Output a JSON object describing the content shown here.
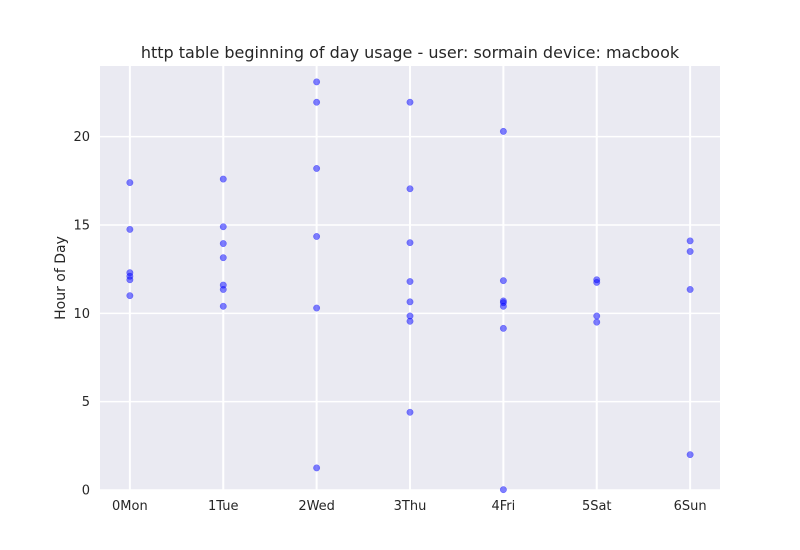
{
  "chart_data": {
    "type": "scatter",
    "title": "http table beginning of day usage -  user: sormain device: macbook",
    "xlabel": "",
    "ylabel": "Hour of Day",
    "categories": [
      "0Mon",
      "1Tue",
      "2Wed",
      "3Thu",
      "4Fri",
      "5Sat",
      "6Sun"
    ],
    "yticks": [
      0,
      5,
      10,
      15,
      20
    ],
    "ytick_labels": [
      "0",
      "5",
      "10",
      "15",
      "20"
    ],
    "xlim": [
      -0.32,
      6.32
    ],
    "ylim": [
      0,
      24
    ],
    "grid": true,
    "points": [
      {
        "x": 0,
        "y": 17.4
      },
      {
        "x": 0,
        "y": 14.75
      },
      {
        "x": 0,
        "y": 12.3
      },
      {
        "x": 0,
        "y": 12.1
      },
      {
        "x": 0,
        "y": 11.9
      },
      {
        "x": 0,
        "y": 11.0
      },
      {
        "x": 1,
        "y": 17.6
      },
      {
        "x": 1,
        "y": 14.9
      },
      {
        "x": 1,
        "y": 13.95
      },
      {
        "x": 1,
        "y": 13.15
      },
      {
        "x": 1,
        "y": 11.6
      },
      {
        "x": 1,
        "y": 11.35
      },
      {
        "x": 1,
        "y": 10.4
      },
      {
        "x": 2,
        "y": 23.1
      },
      {
        "x": 2,
        "y": 21.95
      },
      {
        "x": 2,
        "y": 18.2
      },
      {
        "x": 2,
        "y": 14.35
      },
      {
        "x": 2,
        "y": 10.3
      },
      {
        "x": 2,
        "y": 1.25
      },
      {
        "x": 3,
        "y": 21.95
      },
      {
        "x": 3,
        "y": 17.05
      },
      {
        "x": 3,
        "y": 14.0
      },
      {
        "x": 3,
        "y": 11.8
      },
      {
        "x": 3,
        "y": 10.65
      },
      {
        "x": 3,
        "y": 9.85
      },
      {
        "x": 3,
        "y": 9.55
      },
      {
        "x": 3,
        "y": 4.4
      },
      {
        "x": 4,
        "y": 20.3
      },
      {
        "x": 4,
        "y": 11.85
      },
      {
        "x": 4,
        "y": 10.7
      },
      {
        "x": 4,
        "y": 10.6
      },
      {
        "x": 4,
        "y": 10.4
      },
      {
        "x": 4,
        "y": 9.15
      },
      {
        "x": 4,
        "y": 0.02
      },
      {
        "x": 5,
        "y": 11.9
      },
      {
        "x": 5,
        "y": 11.75
      },
      {
        "x": 5,
        "y": 9.85
      },
      {
        "x": 5,
        "y": 9.5
      },
      {
        "x": 6,
        "y": 14.1
      },
      {
        "x": 6,
        "y": 13.5
      },
      {
        "x": 6,
        "y": 11.35
      },
      {
        "x": 6,
        "y": 2.0
      }
    ],
    "colors": {
      "point": "#0000ff",
      "background": "#eaeaf2",
      "grid": "#ffffff",
      "text": "#262626"
    }
  }
}
